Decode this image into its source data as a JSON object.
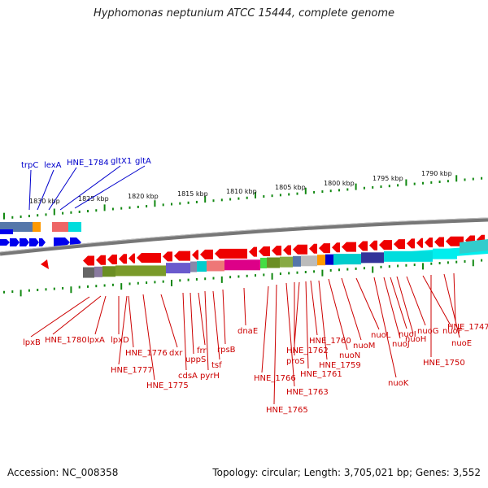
{
  "title": "Hyphomonas neptunium ATCC 15444, complete genome",
  "footer": {
    "accession": "Accession: NC_008358",
    "summary": "Topology: circular; Length: 3,705,021 bp; Genes: 3,552"
  },
  "colors": {
    "forward_gene": "#0000ee",
    "reverse_gene": "#ee0000",
    "backbone": "#888888",
    "tick": "#118811",
    "label_blue": "#0000cc",
    "label_red": "#cc0000"
  },
  "scale_labels": [
    "1830 kbp",
    "1825 kbp",
    "1820 kbp",
    "1815 kbp",
    "1810 kbp",
    "1805 kbp",
    "1800 kbp",
    "1795 kbp",
    "1790 kbp"
  ],
  "forward_genes": [
    "trpC",
    "lexA",
    "HNE_1784",
    "gltX1",
    "gltA"
  ],
  "reverse_genes": [
    "lpxB",
    "HNE_1780",
    "lpxA",
    "lpxD",
    "HNE_1776",
    "HNE_1777",
    "HNE_1775",
    "dxr",
    "cdsA",
    "uppS",
    "frr",
    "pyrH",
    "tsf",
    "rpsB",
    "dnaE",
    "HNE_1766",
    "HNE_1765",
    "HNE_1763",
    "proS",
    "HNE_1762",
    "HNE_1761",
    "HNE_1760",
    "HNE_1759",
    "nuoN",
    "nuoM",
    "nuoL",
    "nuoK",
    "nuoJ",
    "nuoI",
    "nuoH",
    "nuoG",
    "nuoF",
    "HNE_1750",
    "nuoE",
    "HNE_1747"
  ]
}
